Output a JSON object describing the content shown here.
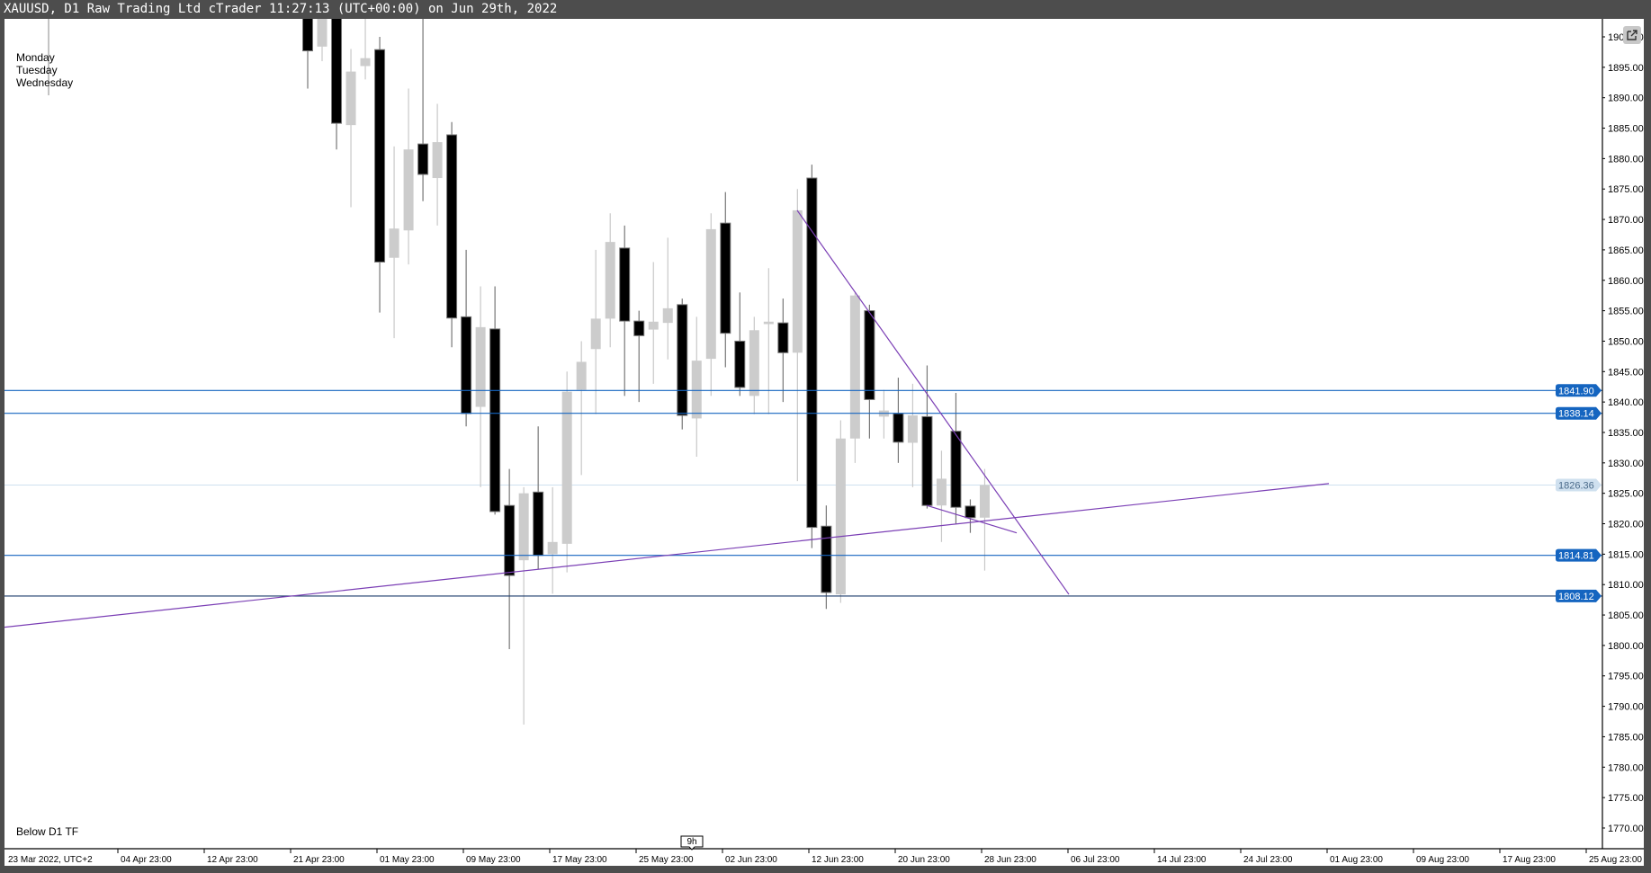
{
  "window": {
    "title": "XAUUSD, D1 Raw Trading Ltd cTrader 11:27:13 (UTC+00:00) on Jun 29th, 2022"
  },
  "overlay": {
    "days": [
      "Monday",
      "Tuesday",
      "Wednesday"
    ],
    "bottom_note": "Below D1 TF"
  },
  "icons": {
    "popout": "popout-icon"
  },
  "colors": {
    "bull": "#cccccc",
    "bear": "#000000",
    "hline": "#1565c0",
    "trendline": "#7b3fb5",
    "current_price": "#cfe0ef"
  },
  "chart_data": {
    "type": "candlestick",
    "symbol": "XAUUSD",
    "timeframe": "D1",
    "ylim": [
      1766,
      1905
    ],
    "y_ticks": [
      1900,
      1895,
      1890,
      1885,
      1880,
      1875,
      1870,
      1865,
      1860,
      1855,
      1850,
      1845,
      1840,
      1835,
      1830,
      1825,
      1820,
      1815,
      1810,
      1805,
      1800,
      1795,
      1790,
      1785,
      1780,
      1775,
      1770
    ],
    "x_tick_labels": [
      "23 Mar 2022, UTC+2",
      "04 Apr 23:00",
      "12 Apr 23:00",
      "21 Apr 23:00",
      "01 May 23:00",
      "09 May 23:00",
      "17 May 23:00",
      "25 May 23:00",
      "02 Jun 23:00",
      "12 Jun 23:00",
      "20 Jun 23:00",
      "28 Jun 23:00",
      "06 Jul 23:00",
      "14 Jul 23:00",
      "24 Jul 23:00",
      "01 Aug 23:00",
      "09 Aug 23:00",
      "17 Aug 23:00",
      "25 Aug 23:00"
    ],
    "time_marker": "9h",
    "candles": [
      [
        1905,
        1910,
        1891.5,
        1897.7
      ],
      [
        1898.4,
        1910,
        1896,
        1905
      ],
      [
        1905,
        1910,
        1881.5,
        1885.8
      ],
      [
        1885.5,
        1898,
        1872,
        1894.3
      ],
      [
        1895.2,
        1906,
        1893,
        1896.5
      ],
      [
        1897.9,
        1900,
        1854.7,
        1863
      ],
      [
        1863.7,
        1882,
        1850.5,
        1868.5
      ],
      [
        1868.2,
        1891.5,
        1862.6,
        1881.5
      ],
      [
        1882.4,
        1910,
        1873,
        1877.4
      ],
      [
        1876.8,
        1889,
        1869,
        1882.7
      ],
      [
        1883.9,
        1886,
        1849,
        1853.8
      ],
      [
        1854,
        1865,
        1836,
        1838.1
      ],
      [
        1839.2,
        1859,
        1826,
        1852.3
      ],
      [
        1852,
        1859,
        1821.5,
        1822
      ],
      [
        1823,
        1829,
        1799.4,
        1811.5
      ],
      [
        1814,
        1826,
        1787,
        1825
      ],
      [
        1825.2,
        1836,
        1812.5,
        1814.8
      ],
      [
        1815,
        1826,
        1808.5,
        1817
      ],
      [
        1816.7,
        1845,
        1812,
        1841.7
      ],
      [
        1842,
        1850,
        1828,
        1846.6
      ],
      [
        1848.7,
        1865,
        1838,
        1853.7
      ],
      [
        1853.7,
        1871,
        1849,
        1866.3
      ],
      [
        1865.3,
        1869,
        1841,
        1853.3
      ],
      [
        1853.3,
        1855,
        1840,
        1850.9
      ],
      [
        1851.9,
        1863,
        1843,
        1853.2
      ],
      [
        1853,
        1867,
        1847,
        1855.4
      ],
      [
        1856,
        1857,
        1835.5,
        1837.8
      ],
      [
        1837.3,
        1854,
        1831,
        1846.8
      ],
      [
        1847.1,
        1871,
        1841,
        1868.4
      ],
      [
        1869.4,
        1874.5,
        1845.7,
        1851.3
      ],
      [
        1850,
        1858,
        1841,
        1842.4
      ],
      [
        1841,
        1854,
        1838,
        1851.8
      ],
      [
        1852.8,
        1862,
        1838,
        1853.2
      ],
      [
        1853,
        1857,
        1840,
        1848.1
      ],
      [
        1848.1,
        1875,
        1827,
        1871.5
      ],
      [
        1876.8,
        1879,
        1816,
        1819.4
      ],
      [
        1819.6,
        1823,
        1806,
        1808.7
      ],
      [
        1808.4,
        1837,
        1807,
        1834
      ],
      [
        1834,
        1858,
        1830,
        1857.5
      ],
      [
        1855,
        1856,
        1834,
        1840.4
      ],
      [
        1837.6,
        1842,
        1834,
        1838.6
      ],
      [
        1838.1,
        1844,
        1830,
        1833.4
      ],
      [
        1833.3,
        1843,
        1826,
        1837.8
      ],
      [
        1837.6,
        1846,
        1822.5,
        1823
      ],
      [
        1823,
        1832,
        1817,
        1827.4
      ],
      [
        1835.2,
        1841.5,
        1820,
        1822.7
      ],
      [
        1822.9,
        1824,
        1818.5,
        1821
      ],
      [
        1821,
        1829,
        1812.3,
        1826.36
      ]
    ],
    "horizontal_lines": [
      {
        "price": 1841.9,
        "label": "1841.90"
      },
      {
        "price": 1838.14,
        "label": "1838.14"
      },
      {
        "price": 1814.81,
        "label": "1814.81"
      },
      {
        "price": 1808.12,
        "label": "1808.12"
      }
    ],
    "current_price": {
      "price": 1826.36,
      "label": "1826.36"
    },
    "trendlines": [
      {
        "from_price": 1803.0,
        "to_price": 1826.6
      },
      {
        "from_price": 1871.5,
        "to_price": 1808.4
      },
      {
        "from_price": 1823.0,
        "to_price": 1818.5
      }
    ]
  }
}
